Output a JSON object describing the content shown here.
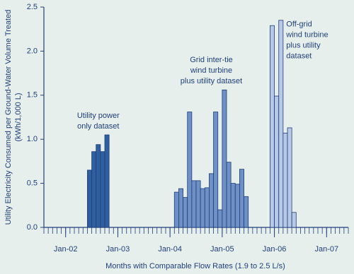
{
  "chart_data": {
    "type": "bar",
    "y_label_lines": [
      "Utility Electricity Consumed per Ground-Water Volume Treated",
      "(kWh/1,000 L)"
    ],
    "x_label": "Months with Comparable Flow Rates (1.9 to 2.5 L/s)",
    "xlim": [
      "Aug-01",
      "Jun-07"
    ],
    "xticks": [
      "Jan-02",
      "Jan-03",
      "Jan-04",
      "Jan-05",
      "Jan-06",
      "Jan-07"
    ],
    "ylim": [
      0,
      2.5
    ],
    "yticks": [
      {
        "value": 0,
        "label": "0.0"
      },
      0.5,
      {
        "value": 1,
        "label": "1.0"
      },
      1.5,
      {
        "value": 2,
        "label": "2.0"
      },
      2.5
    ],
    "series": [
      {
        "annotation": [
          "Utility power",
          "only dataset"
        ],
        "annotation_align": "middle",
        "color": "#2f5f9e",
        "x": [
          "Jun-02",
          "Jul-02",
          "Aug-02",
          "Sep-02",
          "Oct-02"
        ],
        "values": [
          0.65,
          0.86,
          0.94,
          0.86,
          1.05
        ]
      },
      {
        "annotation": [
          "Grid inter-tie",
          "wind turbine",
          "plus utility dataset"
        ],
        "annotation_align": "middle",
        "color": "#6f90c6",
        "x": [
          "Feb-04",
          "Mar-04",
          "Apr-04",
          "May-04",
          "Jun-04",
          "Jul-04",
          "Aug-04",
          "Sep-04",
          "Oct-04",
          "Nov-04",
          "Dec-04",
          "Jan-05",
          "Feb-05",
          "Mar-05",
          "Apr-05",
          "May-05",
          "Jun-05"
        ],
        "values": [
          0.4,
          0.44,
          0.34,
          1.31,
          0.53,
          0.53,
          0.44,
          0.45,
          0.61,
          1.31,
          0.2,
          1.56,
          0.74,
          0.5,
          0.49,
          0.66,
          0.35
        ]
      },
      {
        "annotation": [
          "Off-grid",
          "wind turbine",
          "plus utility",
          "dataset"
        ],
        "annotation_align": "start",
        "color": "#b8c9e8",
        "x": [
          "Dec-05",
          "Jan-06",
          "Feb-06",
          "Mar-06",
          "Apr-06",
          "May-06"
        ],
        "values": [
          2.29,
          1.49,
          2.35,
          1.07,
          1.13,
          0.17
        ]
      }
    ]
  }
}
